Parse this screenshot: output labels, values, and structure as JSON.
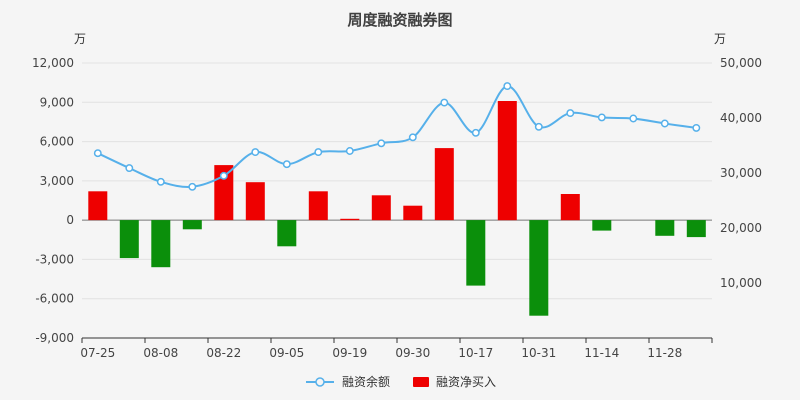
{
  "title": "周度融资融券图",
  "left_axis": {
    "unit": "万",
    "min": -9000,
    "max": 12000,
    "step": 3000
  },
  "right_axis": {
    "unit": "万",
    "min": 0,
    "max": 50000,
    "step": 10000
  },
  "legend": [
    {
      "label": "融资余额",
      "type": "line"
    },
    {
      "label": "融资净买入",
      "type": "bar"
    }
  ],
  "colors": {
    "bar_positive": "#ee0000",
    "bar_negative": "#0b8f0b",
    "line": "#56b0ea",
    "axis": "#333333",
    "grid": "#e2e2e2",
    "zero_line": "#777777",
    "background": "#f5f5f5",
    "title": "#404040"
  },
  "chart_data": {
    "type": "combo",
    "categories": [
      "07-25",
      "",
      "08-08",
      "",
      "08-22",
      "",
      "09-05",
      "",
      "09-19",
      "",
      "09-30",
      "",
      "10-17",
      "",
      "10-31",
      "",
      "11-14",
      "",
      "11-28",
      ""
    ],
    "series": [
      {
        "name": "融资余额",
        "type": "line",
        "axis": "right",
        "values": [
          33600,
          30900,
          28400,
          27500,
          29500,
          33800,
          31600,
          33800,
          34000,
          35400,
          36500,
          42800,
          37300,
          45800,
          38400,
          40900,
          40100,
          39900,
          39000,
          38200
        ]
      },
      {
        "name": "融资净买入",
        "type": "bar",
        "axis": "left",
        "values": [
          2200,
          -2900,
          -3600,
          -700,
          4200,
          2900,
          -2000,
          2200,
          100,
          1900,
          1100,
          5500,
          -5000,
          9100,
          -7300,
          2000,
          -800,
          0,
          -1200,
          -1300
        ]
      }
    ],
    "title": "周度融资融券图",
    "xlabel": "",
    "ylabel_left": "万",
    "ylabel_right": "万",
    "ylim_left": [
      -9000,
      12000
    ],
    "ylim_right": [
      0,
      50000
    ],
    "grid": true,
    "legend_position": "bottom"
  }
}
